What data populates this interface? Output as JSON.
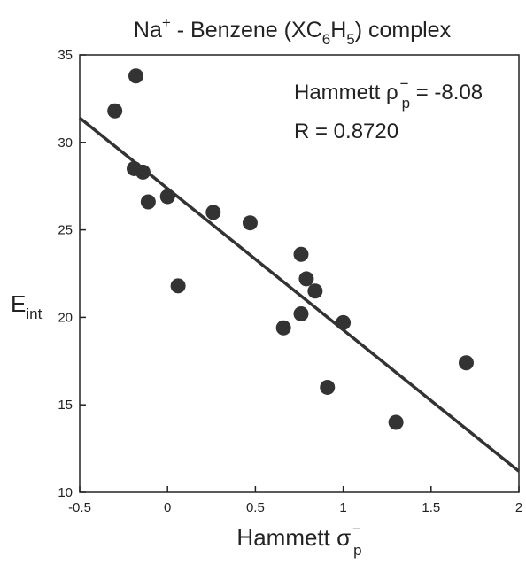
{
  "chart_data": {
    "type": "scatter",
    "title": {
      "base": "Na",
      "sup": "+",
      "middle": " - Benzene (XC",
      "sub1": "6",
      "mid2": "H",
      "sub2": "5",
      "end": ") complex"
    },
    "xlabel": {
      "base": "Hammett σ",
      "sup": "−",
      "sub": "p"
    },
    "ylabel": {
      "base": "E",
      "sub": "int"
    },
    "xlim": [
      -0.5,
      2
    ],
    "ylim": [
      10,
      35
    ],
    "x_ticks": [
      -0.5,
      0,
      0.5,
      1,
      1.5,
      2
    ],
    "x_tick_labels": [
      "-0.5",
      "0",
      "0.5",
      "1",
      "1.5",
      "2"
    ],
    "y_ticks": [
      10,
      15,
      20,
      25,
      30,
      35
    ],
    "y_tick_labels": [
      "10",
      "15",
      "20",
      "25",
      "30",
      "35"
    ],
    "grid": false,
    "points": [
      {
        "x": -0.3,
        "y": 31.8
      },
      {
        "x": -0.18,
        "y": 33.8
      },
      {
        "x": -0.19,
        "y": 28.5
      },
      {
        "x": -0.14,
        "y": 28.3
      },
      {
        "x": -0.11,
        "y": 26.6
      },
      {
        "x": 0.0,
        "y": 26.9
      },
      {
        "x": 0.06,
        "y": 21.8
      },
      {
        "x": 0.26,
        "y": 26.0
      },
      {
        "x": 0.47,
        "y": 25.4
      },
      {
        "x": 0.66,
        "y": 19.4
      },
      {
        "x": 0.76,
        "y": 23.6
      },
      {
        "x": 0.76,
        "y": 20.2
      },
      {
        "x": 0.79,
        "y": 22.2
      },
      {
        "x": 0.84,
        "y": 21.5
      },
      {
        "x": 0.91,
        "y": 16.0
      },
      {
        "x": 1.0,
        "y": 19.7
      },
      {
        "x": 1.3,
        "y": 14.0
      },
      {
        "x": 1.7,
        "y": 17.4
      }
    ],
    "fit_line": {
      "x": [
        -0.5,
        2
      ],
      "y": [
        31.4,
        11.2
      ]
    },
    "annotations": {
      "hammett_base": "Hammett ρ",
      "hammett_sup": "−",
      "hammett_sub": "p",
      "hammett_value": " = -8.08",
      "r_text": "R = 0.8720"
    },
    "colors": {
      "points": "#333333",
      "line": "#333333",
      "axis": "#222222"
    }
  }
}
